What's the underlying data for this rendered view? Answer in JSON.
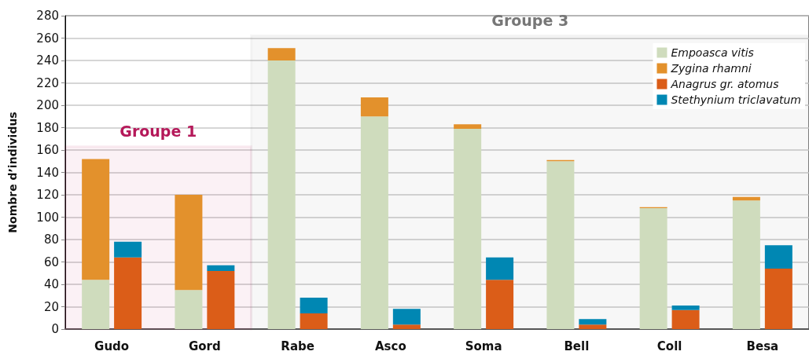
{
  "chart_data": {
    "type": "bar",
    "ylabel": "Nombre d’individus",
    "categories": [
      "Gudo",
      "Gord",
      "Rabe",
      "Asco",
      "Soma",
      "Bell",
      "Coll",
      "Besa"
    ],
    "series": [
      {
        "name": "Empoasca vitis",
        "color": "#cfdcbd",
        "values": [
          44,
          35,
          240,
          190,
          179,
          150,
          108,
          115
        ],
        "base": [
          0,
          0,
          0,
          0,
          0,
          0,
          0,
          0
        ]
      },
      {
        "name": "Zygina rhamni",
        "color": "#e3912c",
        "values": [
          108,
          85,
          11,
          17,
          4,
          1,
          1,
          3
        ],
        "base": [
          44,
          35,
          240,
          190,
          179,
          150,
          108,
          115
        ]
      },
      {
        "name": "Anagrus gr. atomus",
        "color": "#db5d18",
        "values": [
          64,
          52,
          14,
          4,
          44,
          4,
          17,
          54
        ],
        "base": [
          0,
          0,
          0,
          0,
          0,
          0,
          0,
          0
        ]
      },
      {
        "name": "Stethynium triclavatum",
        "color": "#0087b3",
        "values": [
          14,
          5,
          14,
          14,
          20,
          5,
          4,
          21
        ],
        "base": [
          64,
          52,
          14,
          4,
          44,
          4,
          17,
          54
        ]
      }
    ],
    "ylim": [
      0,
      280
    ],
    "yticks": [
      0,
      20,
      40,
      60,
      80,
      100,
      120,
      140,
      160,
      180,
      200,
      220,
      240,
      260,
      280
    ],
    "grid": "y",
    "legend": "top right",
    "bands": [
      {
        "axis": "x",
        "from": "Gudo",
        "to": "Gord",
        "label": "Groupe 1",
        "color": "#b5195a"
      },
      {
        "axis": "x",
        "from": "Rabe",
        "to": "Besa",
        "label": "Groupe 3",
        "color": "#777777"
      }
    ]
  }
}
